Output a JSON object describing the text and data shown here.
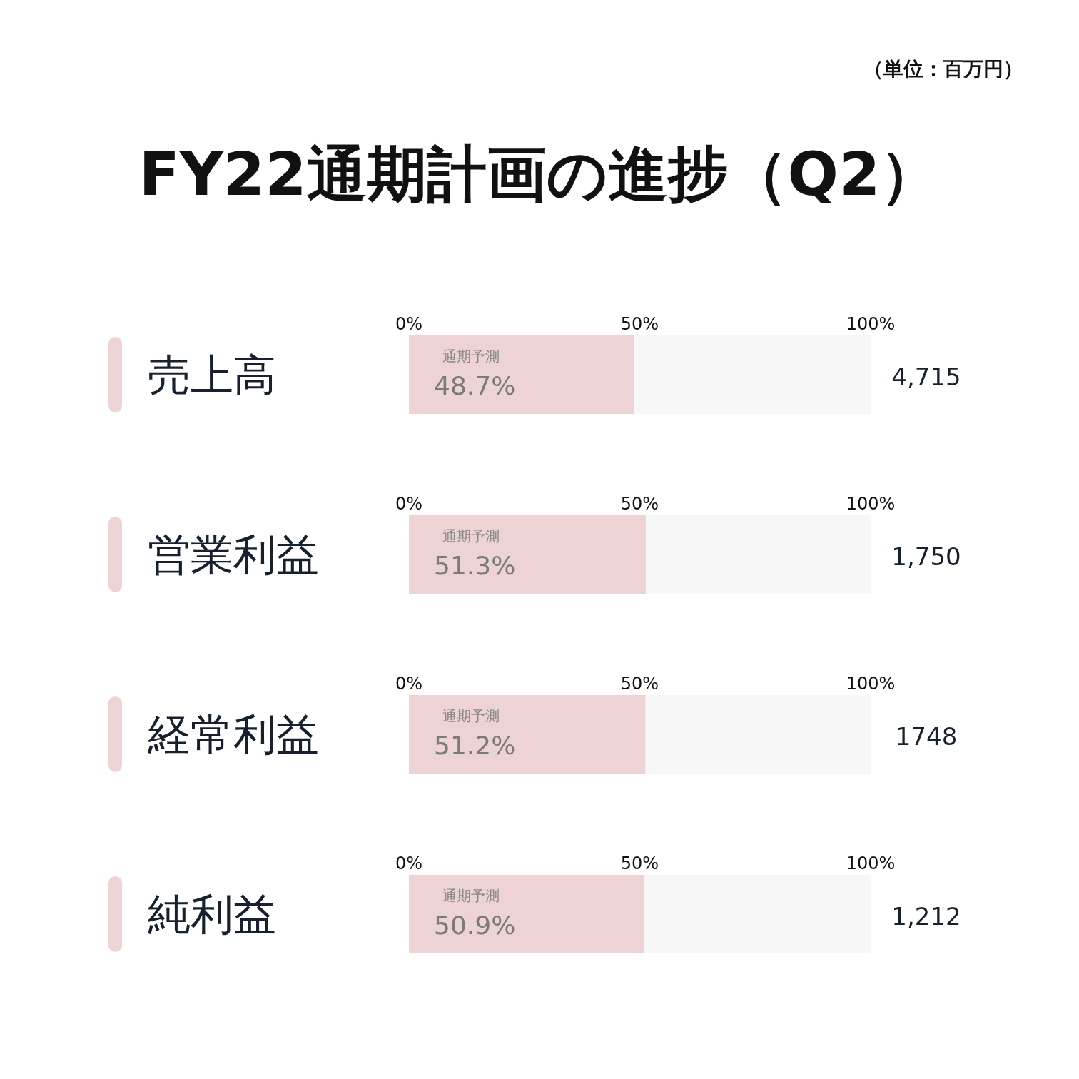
{
  "chart_data": [
    {
      "type": "bar",
      "orientation": "horizontal",
      "title": "FY22通期計画の進捗（Q2）",
      "annotations": [
        "（単位：百万円）",
        "通期予測",
        "4,715"
      ],
      "categories": [
        "売上高"
      ],
      "values": [
        48.7
      ],
      "value_labels": [
        "48.7%"
      ],
      "color": "#eed3d4",
      "xlim": [
        0,
        100
      ],
      "xticks": [
        {
          "value": 0,
          "label": "0%"
        },
        {
          "value": 50,
          "label": "50%"
        },
        {
          "value": 100,
          "label": "100%"
        }
      ]
    },
    {
      "type": "bar",
      "orientation": "horizontal",
      "annotations": [
        "通期予測",
        "1,750"
      ],
      "categories": [
        "営業利益"
      ],
      "values": [
        51.3
      ],
      "value_labels": [
        "51.3%"
      ],
      "color": "#eed3d4",
      "xlim": [
        0,
        100
      ],
      "xticks": [
        {
          "value": 0,
          "label": "0%"
        },
        {
          "value": 50,
          "label": "50%"
        },
        {
          "value": 100,
          "label": "100%"
        }
      ]
    },
    {
      "type": "bar",
      "orientation": "horizontal",
      "annotations": [
        "通期予測",
        "1748"
      ],
      "categories": [
        "経常利益"
      ],
      "values": [
        51.2
      ],
      "value_labels": [
        "51.2%"
      ],
      "color": "#eed3d4",
      "xlim": [
        0,
        100
      ],
      "xticks": [
        {
          "value": 0,
          "label": "0%"
        },
        {
          "value": 50,
          "label": "50%"
        },
        {
          "value": 100,
          "label": "100%"
        }
      ]
    },
    {
      "type": "bar",
      "orientation": "horizontal",
      "annotations": [
        "通期予測",
        "1,212"
      ],
      "categories": [
        "純利益"
      ],
      "values": [
        50.9
      ],
      "value_labels": [
        "50.9%"
      ],
      "color": "#eed3d4",
      "xlim": [
        0,
        100
      ],
      "xticks": [
        {
          "value": 0,
          "label": "0%"
        },
        {
          "value": 50,
          "label": "50%"
        },
        {
          "value": 100,
          "label": "100%"
        }
      ]
    }
  ]
}
